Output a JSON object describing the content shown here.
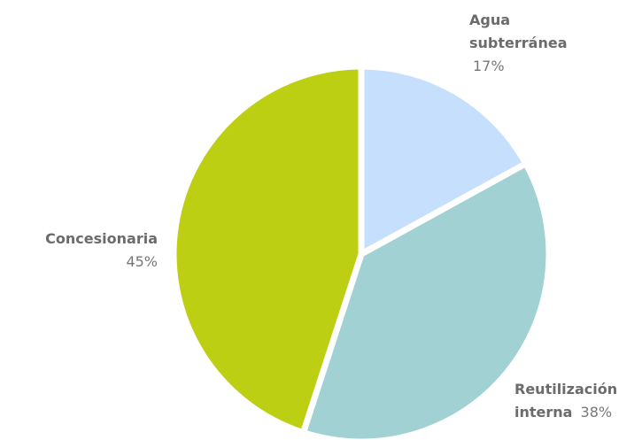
{
  "chart_data": {
    "type": "pie",
    "categories": [
      "Agua subterránea",
      "Reutilización interna",
      "Concesionaria"
    ],
    "values": [
      17,
      38,
      45
    ],
    "value_labels": [
      "17%",
      "38%",
      "45%"
    ],
    "colors": [
      "#c6dffc",
      "#a1d1d2",
      "#bccf12"
    ]
  }
}
